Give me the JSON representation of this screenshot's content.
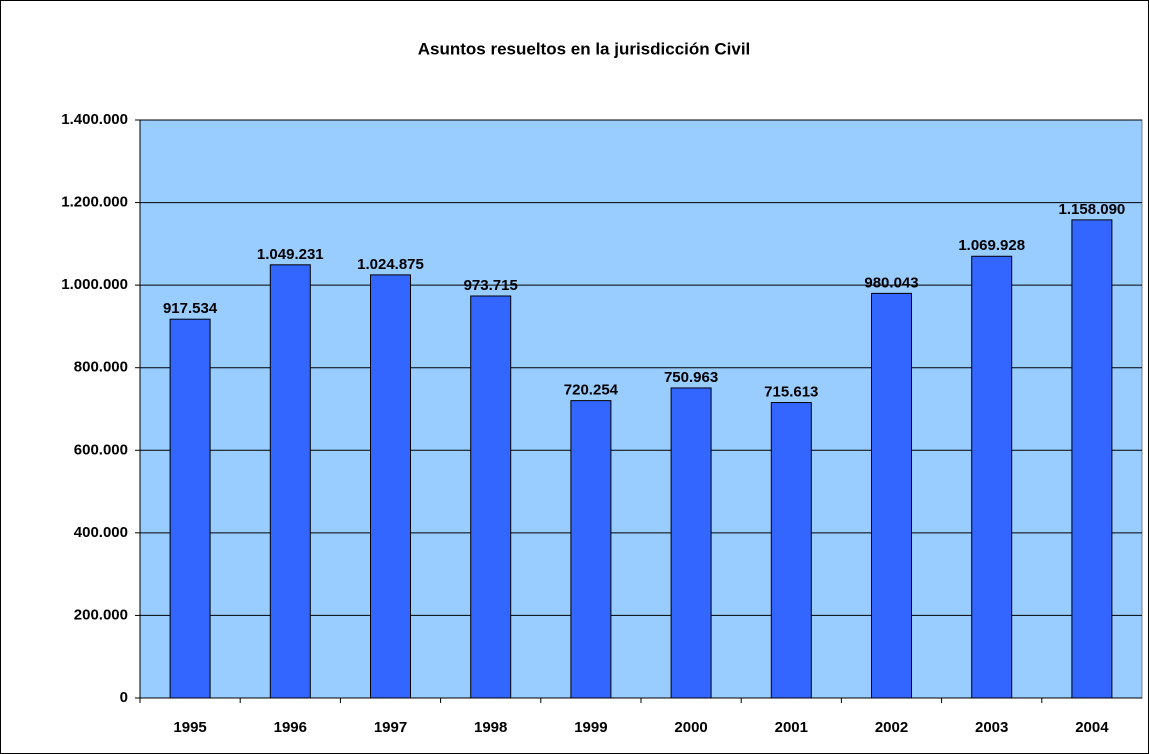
{
  "chart_data": {
    "type": "bar",
    "title": "Asuntos resueltos en la jurisdicción Civil",
    "categories": [
      "1995",
      "1996",
      "1997",
      "1998",
      "1999",
      "2000",
      "2001",
      "2002",
      "2003",
      "2004"
    ],
    "values": [
      917534,
      1049231,
      1024875,
      973715,
      720254,
      750963,
      715613,
      980043,
      1069928,
      1158090
    ],
    "value_labels": [
      "917.534",
      "1.049.231",
      "1.024.875",
      "973.715",
      "720.254",
      "750.963",
      "715.613",
      "980.043",
      "1.069.928",
      "1.158.090"
    ],
    "color": "#3366ff",
    "ylim": [
      0,
      1400000
    ],
    "yticks": [
      0,
      {
        "value": 200000,
        "label": "200.000"
      },
      {
        "value": 400000,
        "label": "400.000"
      },
      {
        "value": 600000,
        "label": "600.000"
      },
      {
        "value": 800000,
        "label": "800.000"
      },
      {
        "value": 1000000,
        "label": "1.000.000"
      },
      {
        "value": 1200000,
        "label": "1.200.000"
      },
      {
        "value": 1400000,
        "label": "1.400.000"
      }
    ],
    "grid": true
  }
}
